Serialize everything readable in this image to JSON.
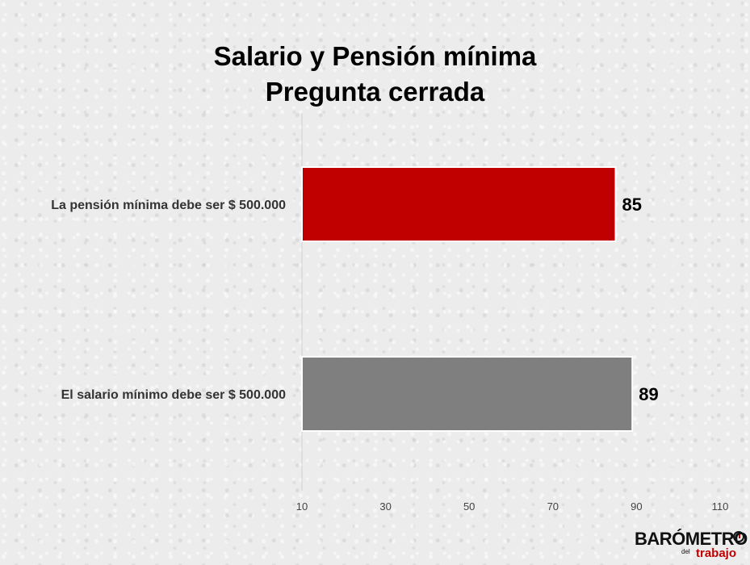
{
  "chart_data": {
    "type": "bar",
    "orientation": "horizontal",
    "title": "Salario y Pensión mínima",
    "subtitle": "Pregunta cerrada",
    "categories": [
      "La pensión mínima debe ser $ 500.000",
      "El salario mínimo debe ser $ 500.000"
    ],
    "values": [
      85,
      89
    ],
    "bar_colors": [
      "#c00000",
      "#7f7f7f"
    ],
    "data_labels": [
      "85",
      "89"
    ],
    "xlim": [
      10,
      110
    ],
    "x_ticks": [
      "10",
      "30",
      "50",
      "70",
      "90",
      "110"
    ],
    "grid": false,
    "legend": "none"
  },
  "logo": {
    "name": "BARÓMETRO",
    "connector": "del",
    "sub": "trabajo",
    "accent_color": "#c00000"
  }
}
